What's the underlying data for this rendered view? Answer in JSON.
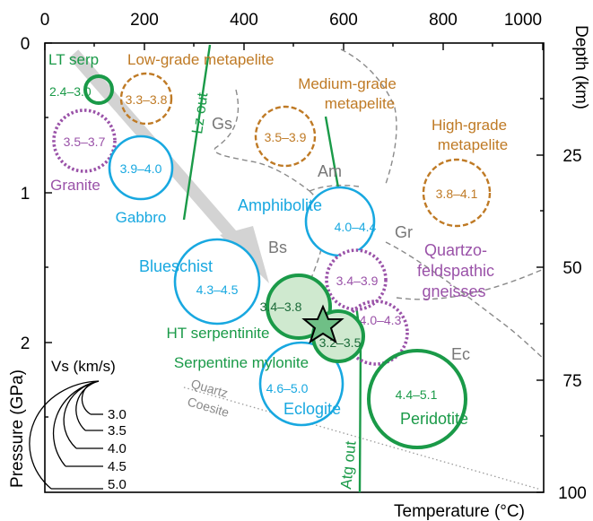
{
  "axes": {
    "temperature_ticks": [
      "0",
      "200",
      "400",
      "600",
      "800",
      "1000"
    ],
    "temperature_title": "Temperature (°C)",
    "pressure_ticks": [
      "0",
      "1",
      "2"
    ],
    "pressure_title": "Pressure (GPa)",
    "depth_ticks": [
      "25",
      "50",
      "75",
      "100"
    ],
    "depth_title": "Depth (km)"
  },
  "boundaries": {
    "lz_out": "Lz out",
    "atg_out": "Atg out",
    "quartz": "Quartz",
    "coesite": "Coesite"
  },
  "facies": {
    "gs": "Gs",
    "am": "Am",
    "bs": "Bs",
    "gr": "Gr",
    "ec": "Ec"
  },
  "rocks": {
    "lt_serp": {
      "name": "LT serp",
      "range": "2.4–3.0"
    },
    "low_grade": {
      "name1": "Low-grade metapelite",
      "range": "3.3–3.8"
    },
    "medium_grade": {
      "name1": "Medium-grade",
      "name2": "metapelite",
      "range": "3.5–3.9"
    },
    "high_grade": {
      "name1": "High-grade",
      "name2": "metapelite",
      "range": "3.8–4.1"
    },
    "granite": {
      "name": "Granite",
      "range": "3.5–3.7"
    },
    "gabbro": {
      "name": "Gabbro",
      "range": "3.9–4.0"
    },
    "amphibolite": {
      "name": "Amphibolite",
      "range": "4.0–4.4"
    },
    "quartzo": {
      "name1": "Quartzo-",
      "name2": "feldspathic",
      "name3": "gneisses",
      "range": "3.4–3.9"
    },
    "blueschist": {
      "name": "Blueschist",
      "range": "4.3–4.5"
    },
    "ht_serp": {
      "name": "HT serpentinite",
      "range": "3.4–3.8"
    },
    "serp_mylonite": {
      "name": "Serpentine mylonite",
      "range": "3.2–3.5"
    },
    "purple_small": {
      "range": "4.0–4.3"
    },
    "eclogite": {
      "name": "Eclogite",
      "range": "4.6–5.0"
    },
    "peridotite": {
      "name": "Peridotite",
      "range": "4.4–5.1"
    }
  },
  "legend": {
    "title": "Vs (km/s)",
    "values": [
      "3.0",
      "3.5",
      "4.0",
      "4.5",
      "5.0"
    ]
  },
  "colors": {
    "green": "#1a9a48",
    "blue": "#18a8e0",
    "purple": "#9a52a8",
    "orange": "#bf7a25",
    "gray": "#8a8a8a",
    "green_fill": "#cfe9cf",
    "star_fill": "#6fbf86"
  }
}
